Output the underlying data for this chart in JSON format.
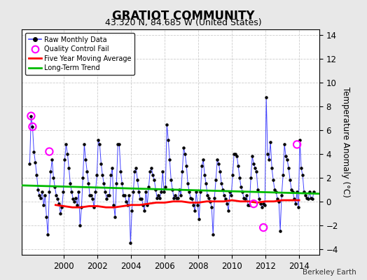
{
  "title": "GRATIOT COMMUNITY",
  "subtitle": "43.320 N, 84.685 W (United States)",
  "ylabel": "Temperature Anomaly (°C)",
  "credit": "Berkeley Earth",
  "fig_bg_color": "#e8e8e8",
  "plot_bg_color": "#ffffff",
  "xlim": [
    1997.5,
    2015.2
  ],
  "ylim": [
    -4.5,
    14.5
  ],
  "yticks": [
    -4,
    -2,
    0,
    2,
    4,
    6,
    8,
    10,
    12,
    14
  ],
  "xticks": [
    2000,
    2002,
    2004,
    2006,
    2008,
    2010,
    2012,
    2014
  ],
  "raw_x": [
    1997.958,
    1998.042,
    1998.125,
    1998.208,
    1998.292,
    1998.375,
    1998.458,
    1998.542,
    1998.625,
    1998.708,
    1998.792,
    1998.875,
    1998.958,
    1999.042,
    1999.125,
    1999.208,
    1999.292,
    1999.375,
    1999.458,
    1999.542,
    1999.625,
    1999.708,
    1999.792,
    1999.875,
    1999.958,
    2000.042,
    2000.125,
    2000.208,
    2000.292,
    2000.375,
    2000.458,
    2000.542,
    2000.625,
    2000.708,
    2000.792,
    2000.875,
    2000.958,
    2001.042,
    2001.125,
    2001.208,
    2001.292,
    2001.375,
    2001.458,
    2001.542,
    2001.625,
    2001.708,
    2001.792,
    2001.875,
    2001.958,
    2002.042,
    2002.125,
    2002.208,
    2002.292,
    2002.375,
    2002.458,
    2002.542,
    2002.625,
    2002.708,
    2002.792,
    2002.875,
    2002.958,
    2003.042,
    2003.125,
    2003.208,
    2003.292,
    2003.375,
    2003.458,
    2003.542,
    2003.625,
    2003.708,
    2003.792,
    2003.875,
    2003.958,
    2004.042,
    2004.125,
    2004.208,
    2004.292,
    2004.375,
    2004.458,
    2004.542,
    2004.625,
    2004.708,
    2004.792,
    2004.875,
    2004.958,
    2005.042,
    2005.125,
    2005.208,
    2005.292,
    2005.375,
    2005.458,
    2005.542,
    2005.625,
    2005.708,
    2005.792,
    2005.875,
    2005.958,
    2006.042,
    2006.125,
    2006.208,
    2006.292,
    2006.375,
    2006.458,
    2006.542,
    2006.625,
    2006.708,
    2006.792,
    2006.875,
    2006.958,
    2007.042,
    2007.125,
    2007.208,
    2007.292,
    2007.375,
    2007.458,
    2007.542,
    2007.625,
    2007.708,
    2007.792,
    2007.875,
    2007.958,
    2008.042,
    2008.125,
    2008.208,
    2008.292,
    2008.375,
    2008.458,
    2008.542,
    2008.625,
    2008.708,
    2008.792,
    2008.875,
    2008.958,
    2009.042,
    2009.125,
    2009.208,
    2009.292,
    2009.375,
    2009.458,
    2009.542,
    2009.625,
    2009.708,
    2009.792,
    2009.875,
    2009.958,
    2010.042,
    2010.125,
    2010.208,
    2010.292,
    2010.375,
    2010.458,
    2010.542,
    2010.625,
    2010.708,
    2010.792,
    2010.875,
    2010.958,
    2011.042,
    2011.125,
    2011.208,
    2011.292,
    2011.375,
    2011.458,
    2011.542,
    2011.625,
    2011.708,
    2011.792,
    2011.875,
    2011.958,
    2012.042,
    2012.125,
    2012.208,
    2012.292,
    2012.375,
    2012.458,
    2012.542,
    2012.625,
    2012.708,
    2012.792,
    2012.875,
    2012.958,
    2013.042,
    2013.125,
    2013.208,
    2013.292,
    2013.375,
    2013.458,
    2013.542,
    2013.625,
    2013.708,
    2013.792,
    2013.875,
    2013.958,
    2014.042,
    2014.125,
    2014.208,
    2014.292,
    2014.375,
    2014.458,
    2014.542,
    2014.625,
    2014.708,
    2014.792,
    2014.875
  ],
  "raw_y": [
    3.2,
    7.2,
    6.3,
    4.2,
    3.3,
    2.2,
    1.0,
    0.5,
    0.3,
    0.8,
    -0.3,
    0.5,
    -1.3,
    -2.8,
    0.8,
    2.5,
    3.5,
    2.0,
    1.2,
    0.5,
    0.2,
    -0.2,
    -1.0,
    -0.5,
    0.8,
    3.5,
    4.8,
    4.0,
    2.8,
    1.5,
    0.8,
    0.2,
    0.0,
    0.3,
    -0.3,
    0.8,
    -2.0,
    -0.5,
    2.0,
    4.8,
    3.5,
    2.5,
    1.5,
    0.5,
    0.5,
    0.2,
    -0.5,
    0.8,
    2.2,
    5.2,
    4.8,
    3.2,
    2.2,
    1.5,
    0.8,
    0.2,
    0.5,
    0.5,
    2.2,
    2.8,
    -0.3,
    -1.3,
    1.5,
    4.8,
    4.8,
    2.5,
    1.5,
    0.5,
    0.5,
    0.0,
    -0.3,
    0.5,
    -3.5,
    -0.8,
    0.8,
    2.5,
    2.8,
    1.8,
    0.8,
    0.2,
    0.2,
    -0.3,
    -0.8,
    0.8,
    -0.3,
    1.2,
    2.5,
    2.8,
    2.2,
    1.8,
    1.0,
    0.3,
    0.5,
    0.3,
    0.8,
    2.5,
    0.8,
    1.2,
    6.5,
    5.2,
    3.5,
    1.8,
    1.0,
    0.3,
    0.5,
    0.3,
    0.3,
    1.0,
    0.5,
    2.5,
    4.5,
    4.0,
    3.0,
    1.5,
    0.8,
    0.3,
    0.2,
    -0.3,
    -0.8,
    0.8,
    -0.3,
    -1.5,
    0.8,
    3.0,
    3.5,
    2.2,
    1.5,
    0.5,
    0.3,
    0.0,
    -0.5,
    -2.8,
    0.3,
    1.8,
    3.5,
    3.2,
    2.5,
    1.5,
    1.0,
    0.5,
    0.2,
    -0.2,
    -0.8,
    0.8,
    0.5,
    2.2,
    4.0,
    4.0,
    3.8,
    3.0,
    2.0,
    1.2,
    0.8,
    0.3,
    0.2,
    0.5,
    -0.3,
    -0.3,
    2.0,
    3.8,
    3.2,
    2.8,
    2.5,
    1.0,
    0.2,
    -0.2,
    -0.5,
    -0.2,
    -0.3,
    8.8,
    4.0,
    3.5,
    5.0,
    2.8,
    1.8,
    1.0,
    0.8,
    0.2,
    0.0,
    -2.5,
    0.5,
    2.2,
    4.8,
    3.8,
    3.5,
    2.8,
    1.8,
    1.0,
    0.8,
    0.2,
    -0.2,
    0.8,
    -0.5,
    5.2,
    2.8,
    2.2,
    0.8,
    0.5,
    0.3,
    0.2,
    0.8,
    0.3,
    0.2,
    0.8
  ],
  "qc_fail_x": [
    1998.042,
    1998.125,
    1999.125,
    2011.292,
    2011.875,
    2013.875
  ],
  "qc_fail_y": [
    7.2,
    6.3,
    4.2,
    -0.2,
    -2.2,
    4.8
  ],
  "ma_x": [
    1999.5,
    2000.0,
    2000.5,
    2001.0,
    2001.5,
    2002.0,
    2002.5,
    2003.0,
    2003.5,
    2004.0,
    2004.5,
    2005.0,
    2005.5,
    2006.0,
    2006.5,
    2007.0,
    2007.5,
    2008.0,
    2008.5,
    2009.0,
    2009.5,
    2010.0,
    2010.5,
    2011.0,
    2011.5,
    2012.0,
    2012.5,
    2013.0,
    2013.5,
    2014.0
  ],
  "ma_y": [
    -0.3,
    -0.4,
    -0.5,
    -0.5,
    -0.4,
    -0.4,
    -0.5,
    -0.5,
    -0.4,
    -0.3,
    -0.3,
    -0.2,
    -0.1,
    -0.1,
    0.0,
    0.0,
    -0.1,
    -0.1,
    0.0,
    0.0,
    0.0,
    0.1,
    0.0,
    0.0,
    -0.1,
    0.0,
    0.0,
    0.1,
    0.1,
    0.1
  ],
  "trend_x": [
    1997.5,
    2015.2
  ],
  "trend_y": [
    1.35,
    0.65
  ],
  "line_color": "#4444ff",
  "ma_color": "#ff0000",
  "trend_color": "#00bb00",
  "qc_color": "#ff00ff",
  "marker_color": "#000000"
}
